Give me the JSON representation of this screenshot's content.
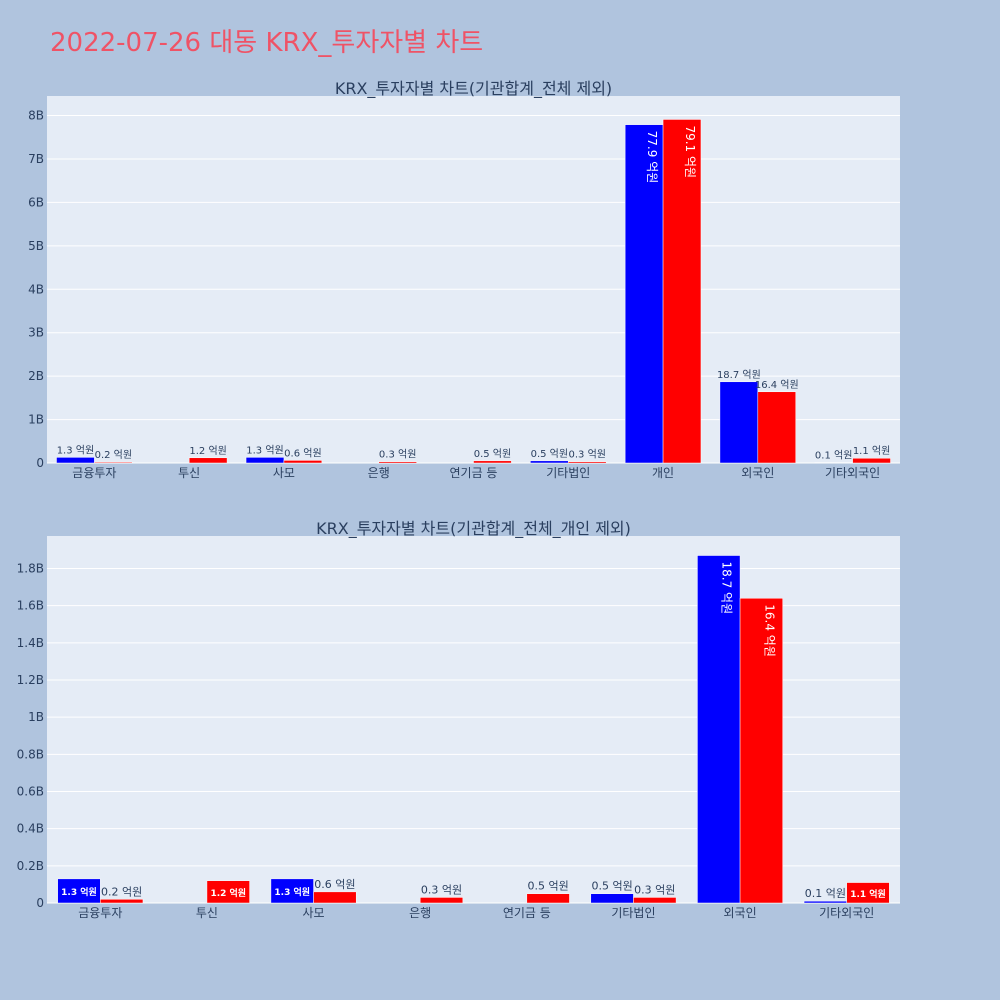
{
  "page": {
    "title": "2022-07-26 대동 KRX_투자자별 차트"
  },
  "colors": {
    "buy": "#0000ff",
    "sell": "#ff0000",
    "plot_bg": "#e5ecf6",
    "paper_bg": "#b0c4de",
    "grid": "#ffffff",
    "text": "#2a3f5f",
    "title": "#ef5366"
  },
  "chart_data": [
    {
      "type": "bar",
      "title": "KRX_투자자별 차트(기관합계_전체 제외)",
      "categories": [
        "금융투자",
        "투신",
        "사모",
        "은행",
        "연기금 등",
        "기타법인",
        "개인",
        "외국인",
        "기타외국인"
      ],
      "series": [
        {
          "color": "#0000ff",
          "values": [
            0.13,
            0,
            0.13,
            0,
            0,
            0.05,
            7.79,
            1.87,
            0.01
          ],
          "labels": [
            "1.3 억원",
            "",
            "1.3 억원",
            "",
            "",
            "0.5 억원",
            "77.9 억원",
            "18.7 억원",
            "0.1 억원"
          ]
        },
        {
          "color": "#ff0000",
          "values": [
            0.02,
            0.12,
            0.06,
            0.03,
            0.05,
            0.03,
            7.91,
            1.64,
            0.11
          ],
          "labels": [
            "0.2 억원",
            "1.2 억원",
            "0.6 억원",
            "0.3 억원",
            "0.5 억원",
            "0.3 억원",
            "79.1 억원",
            "16.4 억원",
            "1.1 억원"
          ]
        }
      ],
      "yticks": [
        0,
        1,
        2,
        3,
        4,
        5,
        6,
        7,
        8
      ],
      "ytick_labels": [
        "0",
        "1B",
        "2B",
        "3B",
        "4B",
        "5B",
        "6B",
        "7B",
        "8B"
      ],
      "ylim": [
        0,
        8.45
      ],
      "grid": true,
      "legend": "none"
    },
    {
      "type": "bar",
      "title": "KRX_투자자별 차트(기관합계_전체_개인 제외)",
      "categories": [
        "금융투자",
        "투신",
        "사모",
        "은행",
        "연기금 등",
        "기타법인",
        "외국인",
        "기타외국인"
      ],
      "series": [
        {
          "color": "#0000ff",
          "values": [
            0.13,
            0,
            0.13,
            0,
            0,
            0.05,
            1.87,
            0.01
          ],
          "labels": [
            "1.3 억원",
            "",
            "1.3 억원",
            "",
            "",
            "0.5 억원",
            "18.7 억원",
            "0.1 억원"
          ]
        },
        {
          "color": "#ff0000",
          "values": [
            0.02,
            0.12,
            0.06,
            0.03,
            0.05,
            0.03,
            1.64,
            0.11
          ],
          "labels": [
            "0.2 억원",
            "1.2 억원",
            "0.6 억원",
            "0.3 억원",
            "0.5 억원",
            "0.3 억원",
            "16.4 억원",
            "1.1 억원"
          ]
        }
      ],
      "yticks": [
        0,
        0.2,
        0.4,
        0.6,
        0.8,
        1,
        1.2,
        1.4,
        1.6,
        1.8
      ],
      "ytick_labels": [
        "0",
        "0.2B",
        "0.4B",
        "0.6B",
        "0.8B",
        "1B",
        "1.2B",
        "1.4B",
        "1.6B",
        "1.8B"
      ],
      "ylim": [
        0,
        1.975
      ],
      "grid": true,
      "legend": "none"
    }
  ]
}
